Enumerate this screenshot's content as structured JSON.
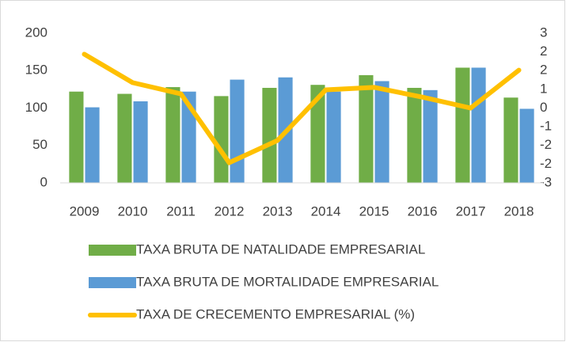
{
  "chart_data": {
    "type": "bar_line",
    "categories": [
      "2009",
      "2010",
      "2011",
      "2012",
      "2013",
      "2014",
      "2015",
      "2016",
      "2017",
      "2018"
    ],
    "series": [
      {
        "name": "TAXA BRUTA DE NATALIDADE EMPRESARIAL",
        "type": "bar",
        "color": "#70ad47",
        "values": [
          122,
          119,
          128,
          116,
          127,
          131,
          144,
          127,
          154,
          114
        ]
      },
      {
        "name": "TAXA BRUTA DE MORTALIDADE EMPRESARIAL",
        "type": "bar",
        "color": "#5b9bd5",
        "values": [
          101,
          109,
          122,
          138,
          141,
          122,
          136,
          124,
          154,
          99
        ]
      },
      {
        "name": "TAXA DE CRECEMENTO EMPRESARIAL (%)",
        "type": "line",
        "axis": "y2",
        "color": "#ffc000",
        "values": [
          2.16,
          1.02,
          0.57,
          -2.19,
          -1.3,
          0.73,
          0.83,
          0.44,
          0.0,
          1.52
        ]
      }
    ],
    "ylim": [
      0,
      200
    ],
    "yticks": [
      0,
      50,
      100,
      150,
      200
    ],
    "y2lim": [
      -3,
      3
    ],
    "y2ticks": [
      -3,
      {
        "value": -2.25,
        "label": "-2"
      },
      {
        "value": -1.5,
        "label": "-2"
      },
      {
        "value": -0.75,
        "label": "-1"
      },
      0,
      {
        "value": 0.75,
        "label": "1"
      },
      {
        "value": 1.5,
        "label": "2"
      },
      {
        "value": 2.25,
        "label": "2"
      },
      3
    ],
    "grid": false,
    "legend": "bottom"
  }
}
